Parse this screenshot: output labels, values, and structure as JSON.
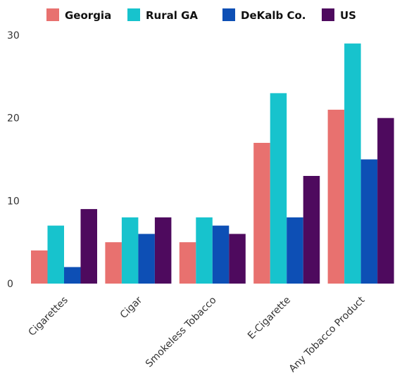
{
  "chart_data": {
    "type": "bar",
    "categories": [
      "Cigarettes",
      "Cigar",
      "Smokeless Tobacco",
      "E-Cigarette",
      "Any Tobacco Product"
    ],
    "series": [
      {
        "name": "Georgia",
        "color": "#E8716F",
        "values": [
          4,
          5,
          5,
          17,
          21
        ]
      },
      {
        "name": "Rural GA",
        "color": "#17C3CD",
        "values": [
          7,
          8,
          8,
          23,
          29
        ]
      },
      {
        "name": "DeKalb Co.",
        "color": "#0D4FB5",
        "values": [
          2,
          6,
          7,
          8,
          15
        ]
      },
      {
        "name": "US",
        "color": "#4E0A5E",
        "values": [
          9,
          8,
          6,
          13,
          20
        ]
      }
    ],
    "ylim": [
      0,
      30
    ],
    "yticks": [
      0,
      10,
      20,
      30
    ],
    "grid": false,
    "legend_position": "top"
  }
}
